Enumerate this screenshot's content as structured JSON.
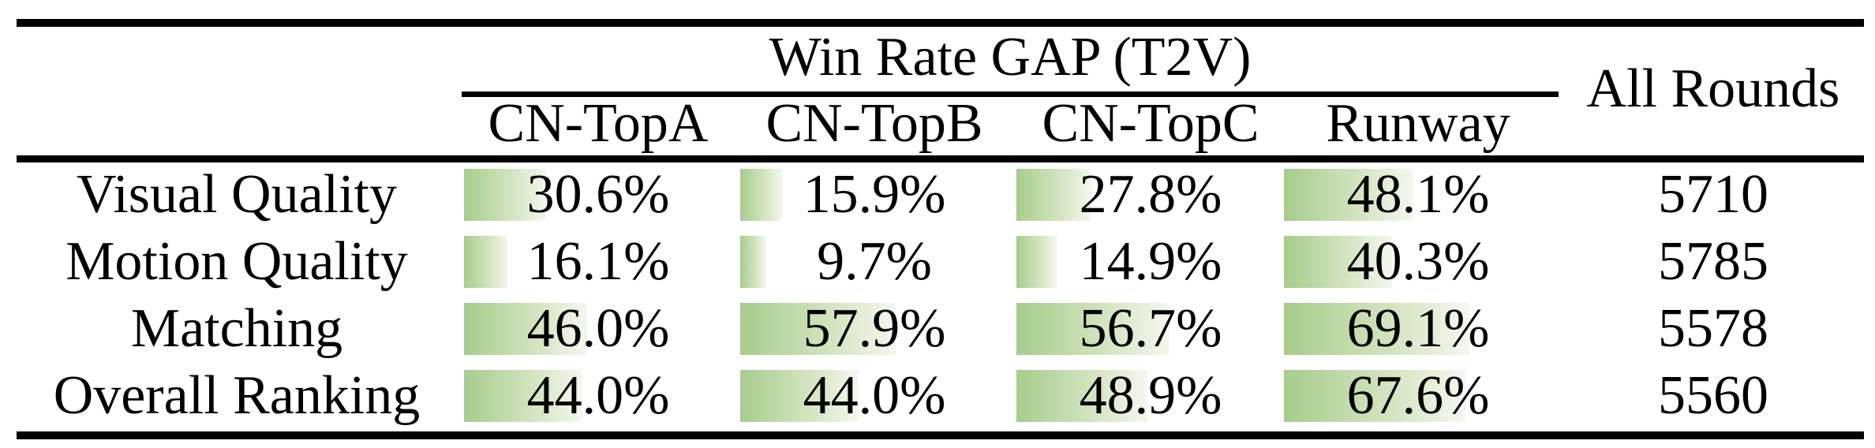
{
  "page": {
    "background": "#ffffff",
    "text_color": "#000000",
    "rule_color": "#000000"
  },
  "table": {
    "group_header": "Win Rate GAP (T2V)",
    "all_rounds_header": "All Rounds",
    "columns": [
      "CN-TopA",
      "CN-TopB",
      "CN-TopC",
      "Runway"
    ],
    "bar": {
      "color_start": "#a6cd8c",
      "color_mid": "#d5e5c2",
      "color_end": "#f4f8ef",
      "max_percent": 100
    },
    "rows": [
      {
        "label": "Visual Quality",
        "values": [
          30.6,
          15.9,
          27.8,
          48.1
        ],
        "all_rounds": 5710
      },
      {
        "label": "Motion Quality",
        "values": [
          16.1,
          9.7,
          14.9,
          40.3
        ],
        "all_rounds": 5785
      },
      {
        "label": "Matching",
        "values": [
          46.0,
          57.9,
          56.7,
          69.1
        ],
        "all_rounds": 5578
      },
      {
        "label": "Overall Ranking",
        "values": [
          44.0,
          44.0,
          48.9,
          67.6
        ],
        "all_rounds": 5560
      }
    ]
  },
  "chart_data": {
    "type": "table",
    "title": "Win Rate GAP (T2V)",
    "categories": [
      "Visual Quality",
      "Motion Quality",
      "Matching",
      "Overall Ranking"
    ],
    "series": [
      {
        "name": "CN-TopA",
        "values": [
          30.6,
          16.1,
          46.0,
          44.0
        ]
      },
      {
        "name": "CN-TopB",
        "values": [
          15.9,
          9.7,
          57.9,
          44.0
        ]
      },
      {
        "name": "CN-TopC",
        "values": [
          27.8,
          14.9,
          56.7,
          48.9
        ]
      },
      {
        "name": "Runway",
        "values": [
          48.1,
          40.3,
          69.1,
          67.6
        ]
      }
    ],
    "all_rounds": {
      "name": "All Rounds",
      "values": [
        5710,
        5785,
        5578,
        5560
      ]
    },
    "unit": "%",
    "value_range": [
      0,
      100
    ],
    "bar_style": "in-cell gradient data bars, green fading to white, left-aligned, width proportional to percent"
  }
}
